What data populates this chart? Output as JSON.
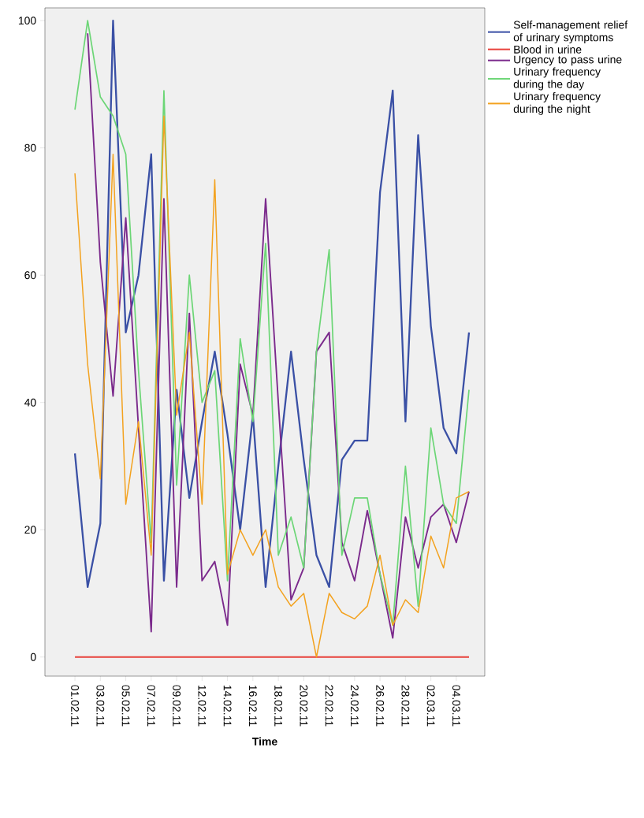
{
  "chart_data": {
    "type": "line",
    "xlabel": "Time",
    "categories": [
      "01.02.11",
      null,
      "03.02.11",
      null,
      "05.02.11",
      null,
      "07.02.11",
      null,
      "09.02.11",
      null,
      "12.02.11",
      null,
      "14.02.11",
      null,
      "16.02.11",
      null,
      "18.02.11",
      null,
      "20.02.11",
      null,
      "22.02.11",
      null,
      "24.02.11",
      null,
      "26.02.11",
      null,
      "28.02.11",
      null,
      "02.03.11",
      null,
      "04.03.11",
      null
    ],
    "series": [
      {
        "name": "Self-management relief of urinary symptoms",
        "color": "#3a50a5",
        "values": [
          32,
          11,
          21,
          100,
          51,
          60,
          79,
          12,
          42,
          25,
          37,
          48,
          35,
          20,
          38,
          11,
          30,
          48,
          31,
          16,
          11,
          31,
          34,
          34,
          73,
          89,
          37,
          82,
          52,
          36,
          32,
          51
        ]
      },
      {
        "name": "Blood in urine",
        "color": "#e8413b",
        "values": [
          0,
          0,
          0,
          0,
          0,
          0,
          0,
          0,
          0,
          0,
          0,
          0,
          0,
          0,
          0,
          0,
          0,
          0,
          0,
          0,
          0,
          0,
          0,
          0,
          0,
          0,
          0,
          0,
          0,
          0,
          0,
          0
        ]
      },
      {
        "name": "Urgency to pass urine",
        "color": "#7b2a8c",
        "values": [
          null,
          98,
          62,
          41,
          69,
          36,
          4,
          72,
          11,
          54,
          12,
          15,
          5,
          46,
          38,
          72,
          40,
          9,
          14,
          48,
          51,
          18,
          12,
          23,
          13,
          3,
          22,
          14,
          22,
          24,
          18,
          26
        ]
      },
      {
        "name": "Urinary frequency during the day",
        "color": "#6cd676",
        "values": [
          86,
          100,
          88,
          85,
          79,
          45,
          18,
          89,
          27,
          60,
          40,
          45,
          12,
          50,
          37,
          65,
          16,
          22,
          14,
          48,
          64,
          16,
          25,
          25,
          13,
          5,
          30,
          8,
          36,
          24,
          21,
          42
        ]
      },
      {
        "name": "Urinary frequency during the night",
        "color": "#f3a21f",
        "values": [
          76,
          46,
          28,
          79,
          24,
          37,
          16,
          85,
          38,
          51,
          24,
          75,
          13,
          20,
          16,
          20,
          11,
          8,
          10,
          0,
          10,
          7,
          6,
          8,
          16,
          5,
          9,
          7,
          19,
          14,
          25,
          26
        ]
      }
    ],
    "ylim": [
      -3,
      102
    ],
    "yticks": [
      0,
      20,
      40,
      60,
      80,
      100
    ],
    "legend": "right",
    "grid": false,
    "marker": "none",
    "line_style": "solid"
  }
}
